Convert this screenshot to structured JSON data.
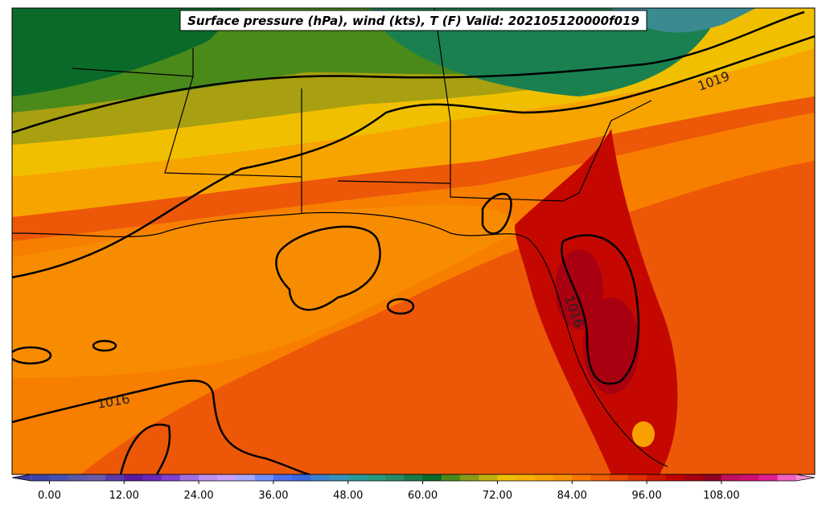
{
  "title": "Surface pressure (hPa), wind (kts), T (F) Valid: 202105120000f019",
  "contour_labels": [
    "1019",
    "1016",
    "1016"
  ],
  "colorbar": {
    "lim": [
      -6,
      123
    ],
    "ticks": [
      {
        "value": 0,
        "label": "0.00"
      },
      {
        "value": 12,
        "label": "12.00"
      },
      {
        "value": 24,
        "label": "24.00"
      },
      {
        "value": 36,
        "label": "36.00"
      },
      {
        "value": 48,
        "label": "48.00"
      },
      {
        "value": 60,
        "label": "60.00"
      },
      {
        "value": 72,
        "label": "72.00"
      },
      {
        "value": 84,
        "label": "84.00"
      },
      {
        "value": 96,
        "label": "96.00"
      },
      {
        "value": 108,
        "label": "108.00"
      }
    ],
    "colors": [
      "#3c3ca0",
      "#3c44a8",
      "#4650b0",
      "#5a5aa8",
      "#6a5aa8",
      "#5a3aa8",
      "#5a1aa0",
      "#6a28b8",
      "#8040d0",
      "#a070e0",
      "#c090f0",
      "#c8a0f8",
      "#a8a8ff",
      "#7090ff",
      "#4a70f0",
      "#3a68e0",
      "#3a80d0",
      "#3a90b8",
      "#2a9a9a",
      "#2a9a80",
      "#2a8a68",
      "#1a7a4a",
      "#0a6a2a",
      "#4a8a1a",
      "#8a9a1a",
      "#c0b010",
      "#f0c000",
      "#f8b000",
      "#f8a000",
      "#f89000",
      "#f87800",
      "#f06000",
      "#e84800",
      "#e03000",
      "#d01800",
      "#c00000",
      "#a80010",
      "#900020",
      "#c01060",
      "#d01070",
      "#e02090",
      "#f060c0",
      "#f890d0"
    ]
  }
}
